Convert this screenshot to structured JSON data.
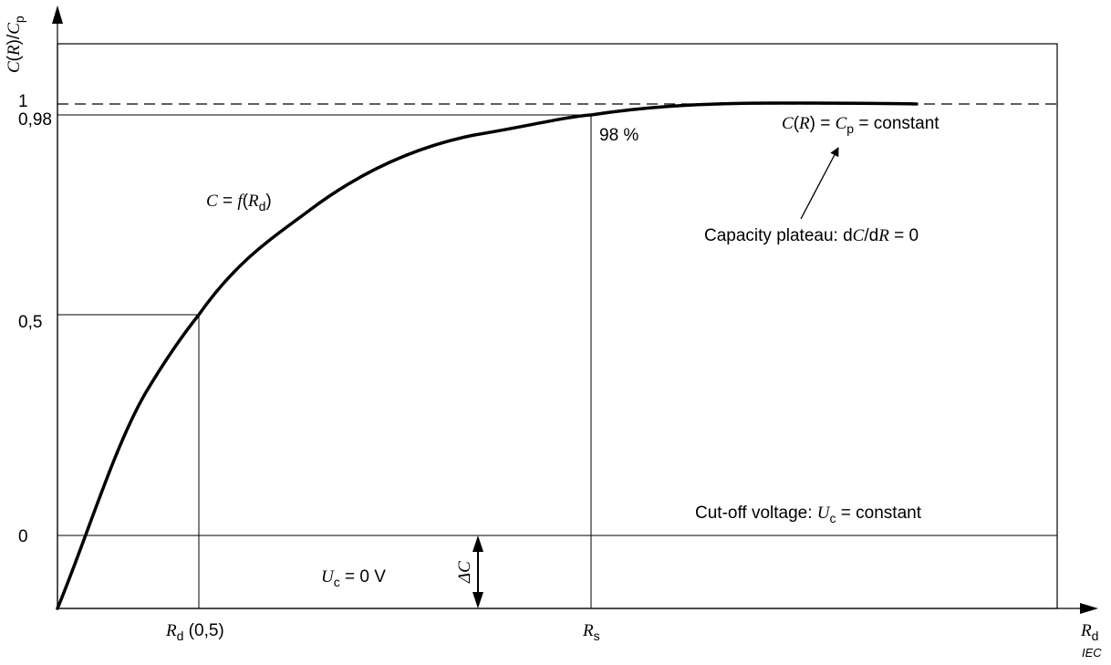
{
  "axes": {
    "y_label": {
      "C1": "C",
      "p1": "(",
      "R": "R",
      "p2": ")/",
      "C2": "C",
      "sub": "p"
    },
    "x_label": {
      "R": "R",
      "sub": "d"
    },
    "y_ticks": [
      "1",
      "0,98",
      "0,5",
      "0"
    ]
  },
  "x_marks": {
    "rd05": {
      "R": "R",
      "sub": "d",
      "rest": " (0,5)"
    },
    "rs": {
      "R": "R",
      "sub": "s"
    }
  },
  "labels": {
    "percent": "98 %",
    "curve": {
      "C": "C",
      "eq": " = ",
      "f": "f",
      "open": "(",
      "R": "R",
      "sub": "d",
      "close": ")"
    },
    "constant": {
      "C": "C",
      "open": "(",
      "R": "R",
      "mid": ") = ",
      "C2": "C",
      "sub": "p",
      "rest": " = constant"
    },
    "plateau": {
      "pre": "Capacity plateau: d",
      "C": "C",
      "slash": "/d",
      "R": "R",
      "rest": " = 0"
    },
    "cutoff": {
      "pre": "Cut-off voltage: ",
      "U": "U",
      "sub": "c",
      "rest": " = constant"
    },
    "uc_zero": {
      "U": "U",
      "sub": "c",
      "rest": " = 0 V"
    },
    "delta": "ΔC",
    "watermark": "IEC"
  }
}
